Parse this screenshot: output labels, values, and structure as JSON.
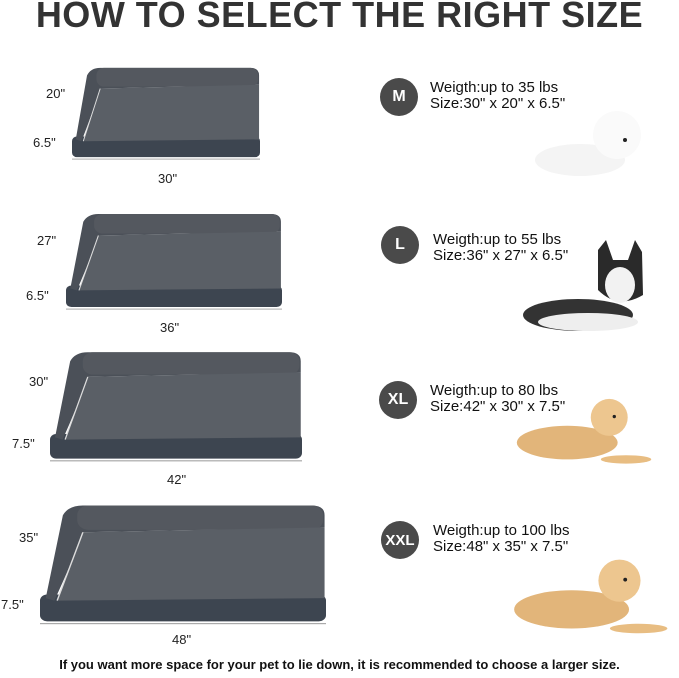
{
  "title": "HOW TO SELECT THE RIGHT SIZE",
  "sizes": [
    {
      "badge": "M",
      "weight": "Weigth:up to 35 lbs",
      "size": "Size:30\" x 20\" x 6.5\"",
      "depth": "20\"",
      "height": "6.5\"",
      "width": "30\"",
      "dog": "bichon-frise"
    },
    {
      "badge": "L",
      "weight": "Weigth:up to 55 lbs",
      "size": "Size:36\" x 27\" x 6.5\"",
      "depth": "27\"",
      "height": "6.5\"",
      "width": "36\"",
      "dog": "husky"
    },
    {
      "badge": "XL",
      "weight": "Weigth:up to 80 lbs",
      "size": "Size:42\" x 30\" x 7.5\"",
      "depth": "30\"",
      "height": "7.5\"",
      "width": "42\"",
      "dog": "golden-retriever"
    },
    {
      "badge": "XXL",
      "weight": "Weigth:up to 100 lbs",
      "size": "Size:48\" x 35\" x 7.5\"",
      "depth": "35\"",
      "height": "7.5\"",
      "width": "48\"",
      "dog": "golden-retriever"
    }
  ],
  "footer": "If you want more space for your pet to lie down, it is recommended to choose a larger size.",
  "colors": {
    "bed_base": "#3d4550",
    "bed_plush": "#5a5f66",
    "badge": "#4a4a4a"
  }
}
